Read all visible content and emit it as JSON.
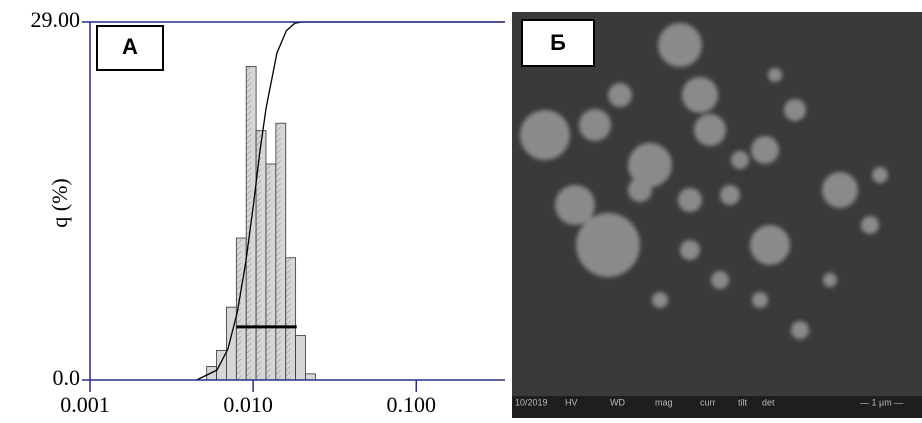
{
  "chart_data": {
    "type": "histogram",
    "panel_label": "А",
    "ylabel": "q (%)",
    "log_x": true,
    "xlim": [
      0.001,
      0.35
    ],
    "ylim": [
      0,
      29
    ],
    "xticks": [
      {
        "value": 0.001,
        "label": "0.001"
      },
      {
        "value": 0.01,
        "label": "0.010"
      },
      {
        "value": 0.1,
        "label": "0.100"
      }
    ],
    "yticks": [
      {
        "value": 0,
        "label": "0.0"
      },
      {
        "value": 29,
        "label": "29.00"
      }
    ],
    "bins": [
      0.00519,
      0.00597,
      0.00686,
      0.00789,
      0.00907,
      0.01043,
      0.01199,
      0.01378,
      0.01585,
      0.01822,
      0.02095,
      0.02408
    ],
    "values": [
      1.1,
      2.4,
      5.9,
      11.5,
      25.4,
      20.2,
      17.5,
      20.8,
      9.9,
      3.6,
      0.5
    ],
    "color": "#d6d6d6",
    "axis_color": "#2b2b8c",
    "curve": {
      "x": [
        0.0045,
        0.006,
        0.007,
        0.008,
        0.009,
        0.01,
        0.011,
        0.012,
        0.014,
        0.016,
        0.018,
        0.02,
        0.35
      ],
      "y": [
        0,
        0.8,
        2.5,
        5.5,
        9.5,
        14,
        18.5,
        22,
        26.5,
        28.3,
        28.9,
        29,
        29
      ]
    },
    "span": {
      "x": [
        0.0079,
        0.0185
      ],
      "y": 4.3
    }
  },
  "image_panel": {
    "label": "Б",
    "info_bar": [
      "10/2019",
      "HV",
      "WD",
      "mag",
      "curr",
      "tilt",
      "det",
      "— 1 µm —"
    ]
  }
}
